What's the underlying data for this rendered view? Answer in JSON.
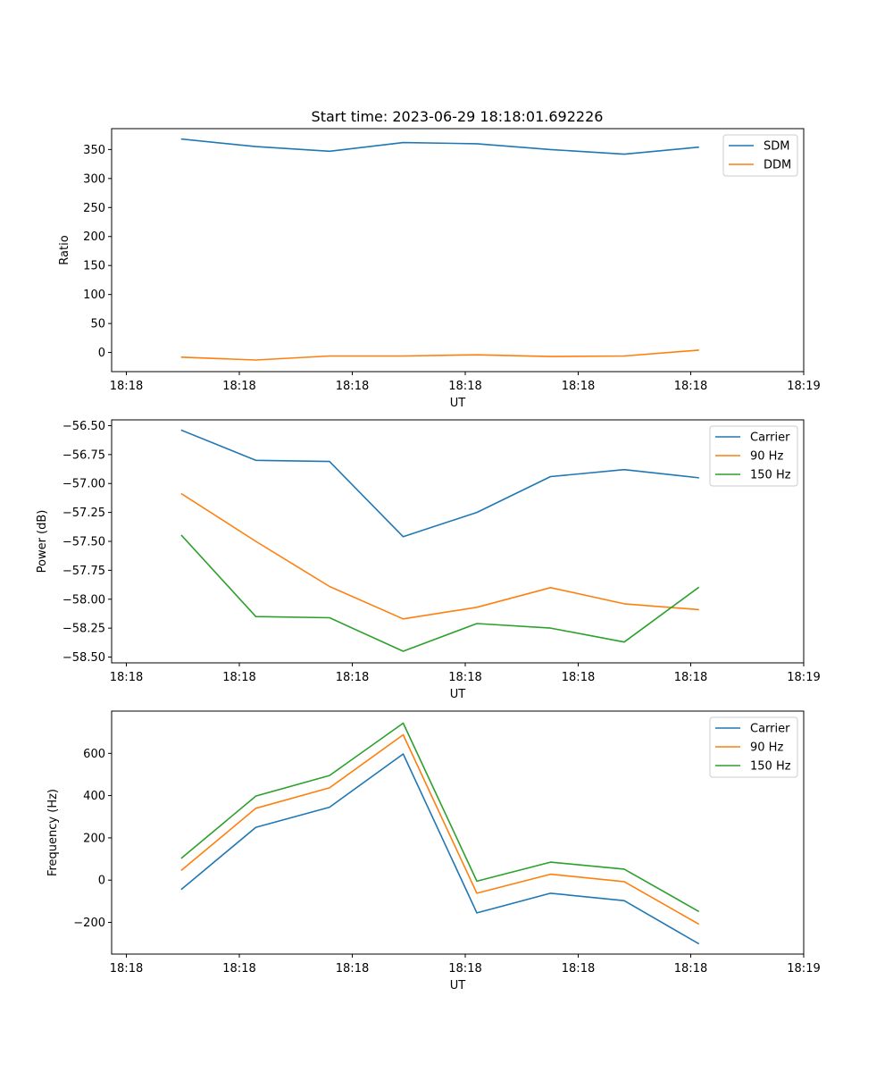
{
  "figure": {
    "title": "Start time: 2023-06-29 18:18:01.692226"
  },
  "chart_data": [
    {
      "type": "line",
      "xlabel": "UT",
      "ylabel": "Ratio",
      "x_ticks": [
        "18:18",
        "18:18",
        "18:18",
        "18:18",
        "18:18",
        "18:18",
        "18:19"
      ],
      "ylim": [
        -33,
        386
      ],
      "y_ticks": [
        0,
        50,
        100,
        150,
        200,
        250,
        300,
        350
      ],
      "grid": false,
      "legend_position": "top-right",
      "series": [
        {
          "name": "SDM",
          "color": "#1f77b4",
          "values": [
            368,
            355,
            347,
            362,
            360,
            350,
            342,
            354
          ]
        },
        {
          "name": "DDM",
          "color": "#ff7f0e",
          "values": [
            -8,
            -13,
            -6,
            -6,
            -4,
            -7,
            -6,
            4
          ]
        }
      ]
    },
    {
      "type": "line",
      "xlabel": "UT",
      "ylabel": "Power (dB)",
      "x_ticks": [
        "18:18",
        "18:18",
        "18:18",
        "18:18",
        "18:18",
        "18:18",
        "18:19"
      ],
      "ylim": [
        -58.55,
        -56.45
      ],
      "y_ticks": [
        -56.5,
        -56.75,
        -57.0,
        -57.25,
        -57.5,
        -57.75,
        -58.0,
        -58.25,
        -58.5
      ],
      "y_tick_labels": [
        "−56.50",
        "−56.75",
        "−57.00",
        "−57.25",
        "−57.50",
        "−57.75",
        "−58.00",
        "−58.25",
        "−58.50"
      ],
      "grid": false,
      "legend_position": "top-right",
      "series": [
        {
          "name": "Carrier",
          "color": "#1f77b4",
          "values": [
            -56.54,
            -56.8,
            -56.81,
            -57.46,
            -57.25,
            -56.94,
            -56.88,
            -56.95
          ]
        },
        {
          "name": "90 Hz",
          "color": "#ff7f0e",
          "values": [
            -57.09,
            -57.5,
            -57.89,
            -58.17,
            -58.07,
            -57.9,
            -58.04,
            -58.09
          ]
        },
        {
          "name": "150 Hz",
          "color": "#2ca02c",
          "values": [
            -57.45,
            -58.15,
            -58.16,
            -58.45,
            -58.21,
            -58.25,
            -58.37,
            -57.9
          ]
        }
      ]
    },
    {
      "type": "line",
      "xlabel": "UT",
      "ylabel": "Frequency (Hz)",
      "x_ticks": [
        "18:18",
        "18:18",
        "18:18",
        "18:18",
        "18:18",
        "18:18",
        "18:19"
      ],
      "ylim": [
        -350,
        800
      ],
      "y_ticks": [
        -200,
        0,
        200,
        400,
        600
      ],
      "y_tick_labels": [
        "−200",
        "0",
        "200",
        "400",
        "600"
      ],
      "grid": false,
      "legend_position": "top-right",
      "series": [
        {
          "name": "Carrier",
          "color": "#1f77b4",
          "values": [
            -42,
            250,
            345,
            597,
            -155,
            -62,
            -97,
            -300
          ]
        },
        {
          "name": "90 Hz",
          "color": "#ff7f0e",
          "values": [
            48,
            340,
            437,
            688,
            -62,
            28,
            -7,
            -207
          ]
        },
        {
          "name": "150 Hz",
          "color": "#2ca02c",
          "values": [
            105,
            398,
            495,
            743,
            -5,
            85,
            52,
            -147
          ]
        }
      ]
    }
  ]
}
